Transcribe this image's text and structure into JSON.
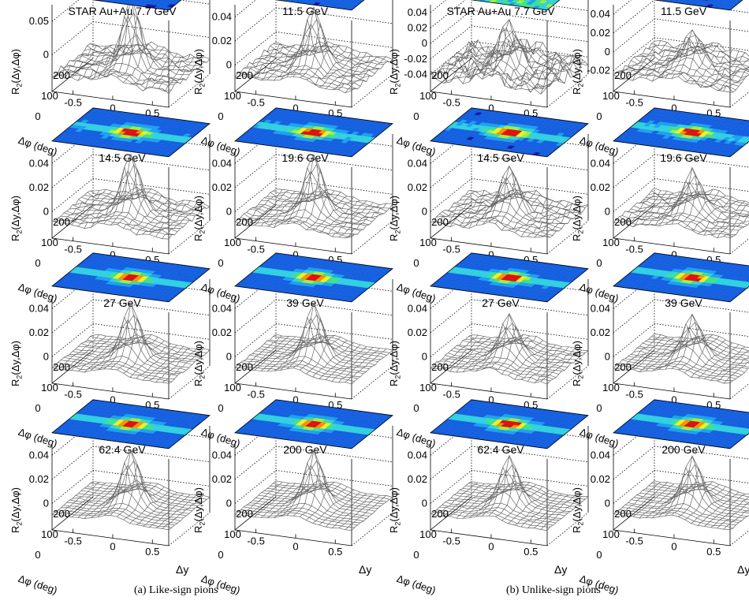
{
  "captions": [
    "(a) Like-sign pions",
    "(b) Unlike-sign pions"
  ],
  "axis_labels": {
    "z": "R2(Δy,Δφ)",
    "x": "Δy",
    "phi": "Δφ (deg)"
  },
  "colors": {
    "mesh": "#666666",
    "colormap": [
      "#1a1aa0",
      "#1560e0",
      "#1ea0f0",
      "#30d0e0",
      "#40e090",
      "#a0f040",
      "#f0f020",
      "#ff9000",
      "#e01010"
    ]
  },
  "chart_data": [
    {
      "type": "surface",
      "group": "Like-sign pions",
      "title": "STAR Au+Au 7.7 GeV",
      "zticks": [
        "0.05",
        "0"
      ],
      "xticks": [
        "-0.5",
        "0",
        "0.5"
      ],
      "phiticks": [
        "200",
        "100",
        "0"
      ],
      "peak": 0.06,
      "noise": 0.45
    },
    {
      "type": "surface",
      "group": "Like-sign pions",
      "title": "11.5 GeV",
      "zticks": [
        "0.04",
        "0.02",
        "0"
      ],
      "xticks": [
        "-0.5",
        "0",
        "0.5"
      ],
      "phiticks": [
        "200",
        "100",
        "0"
      ],
      "peak": 0.05,
      "noise": 0.35
    },
    {
      "type": "surface",
      "group": "Like-sign pions",
      "title": "14.5 GeV",
      "zticks": [
        "0.04",
        "0.02",
        "0"
      ],
      "xticks": [
        "-0.5",
        "0",
        "0.5"
      ],
      "phiticks": [
        "200",
        "100",
        "0"
      ],
      "peak": 0.05,
      "noise": 0.3
    },
    {
      "type": "surface",
      "group": "Like-sign pions",
      "title": "19.6 GeV",
      "zticks": [
        "0.04",
        "0.02",
        "0"
      ],
      "xticks": [
        "-0.5",
        "0",
        "0.5"
      ],
      "phiticks": [
        "200",
        "100",
        "0"
      ],
      "peak": 0.05,
      "noise": 0.25
    },
    {
      "type": "surface",
      "group": "Like-sign pions",
      "title": "27 GeV",
      "zticks": [
        "0.04",
        "0.02",
        "0"
      ],
      "xticks": [
        "-0.5",
        "0",
        "0.5"
      ],
      "phiticks": [
        "200",
        "100",
        "0"
      ],
      "peak": 0.045,
      "noise": 0.15
    },
    {
      "type": "surface",
      "group": "Like-sign pions",
      "title": "39 GeV",
      "zticks": [
        "0.04",
        "0.02",
        "0"
      ],
      "xticks": [
        "-0.5",
        "0",
        "0.5"
      ],
      "phiticks": [
        "200",
        "100",
        "0"
      ],
      "peak": 0.045,
      "noise": 0.12
    },
    {
      "type": "surface",
      "group": "Like-sign pions",
      "title": "62.4 GeV",
      "zticks": [
        "0.04",
        "0.02",
        "0"
      ],
      "xticks": [
        "-0.5",
        "0",
        "0.5"
      ],
      "phiticks": [
        "200",
        "100",
        "0"
      ],
      "peak": 0.045,
      "noise": 0.1
    },
    {
      "type": "surface",
      "group": "Like-sign pions",
      "title": "200 GeV",
      "zticks": [
        "0.04",
        "0.02",
        "0"
      ],
      "xticks": [
        "-0.5",
        "0",
        "0.5"
      ],
      "phiticks": [
        "200",
        "100",
        "0"
      ],
      "peak": 0.045,
      "noise": 0.08
    },
    {
      "type": "surface",
      "group": "Unlike-sign pions",
      "title": "STAR Au+Au 7.7 GeV",
      "zticks": [
        "0.04",
        "0.02",
        "0",
        "-0.02",
        "-0.04"
      ],
      "xticks": [
        "-0.5",
        "0",
        "0.5"
      ],
      "phiticks": [
        "200",
        "100",
        "0"
      ],
      "peak": 0.04,
      "noise": 1.0
    },
    {
      "type": "surface",
      "group": "Unlike-sign pions",
      "title": "11.5 GeV",
      "zticks": [
        "0.04",
        "0.02",
        "0",
        "-0.02"
      ],
      "xticks": [
        "-0.5",
        "0",
        "0.5"
      ],
      "phiticks": [
        "200",
        "100",
        "0"
      ],
      "peak": 0.03,
      "noise": 0.45
    },
    {
      "type": "surface",
      "group": "Unlike-sign pions",
      "title": "14.5 GeV",
      "zticks": [
        "0.04",
        "0.02",
        "0"
      ],
      "xticks": [
        "-0.5",
        "0",
        "0.5"
      ],
      "phiticks": [
        "200",
        "100",
        "0"
      ],
      "peak": 0.04,
      "noise": 0.35
    },
    {
      "type": "surface",
      "group": "Unlike-sign pions",
      "title": "19.6 GeV",
      "zticks": [
        "0.04",
        "0.02",
        "0"
      ],
      "xticks": [
        "-0.5",
        "0",
        "0.5"
      ],
      "phiticks": [
        "200",
        "100",
        "0"
      ],
      "peak": 0.035,
      "noise": 0.3
    },
    {
      "type": "surface",
      "group": "Unlike-sign pions",
      "title": "27 GeV",
      "zticks": [
        "0.04",
        "0.02",
        "0"
      ],
      "xticks": [
        "-0.5",
        "0",
        "0.5"
      ],
      "phiticks": [
        "200",
        "100",
        "0"
      ],
      "peak": 0.035,
      "noise": 0.18
    },
    {
      "type": "surface",
      "group": "Unlike-sign pions",
      "title": "39 GeV",
      "zticks": [
        "0.04",
        "0.02",
        "0"
      ],
      "xticks": [
        "-0.5",
        "0",
        "0.5"
      ],
      "phiticks": [
        "200",
        "100",
        "0"
      ],
      "peak": 0.035,
      "noise": 0.15
    },
    {
      "type": "surface",
      "group": "Unlike-sign pions",
      "title": "62.4 GeV",
      "zticks": [
        "0.04",
        "0.02",
        "0"
      ],
      "xticks": [
        "-0.5",
        "0",
        "0.5"
      ],
      "phiticks": [
        "200",
        "100",
        "0"
      ],
      "peak": 0.04,
      "noise": 0.12
    },
    {
      "type": "surface",
      "group": "Unlike-sign pions",
      "title": "200 GeV",
      "zticks": [
        "0.04",
        "0.02",
        "0"
      ],
      "xticks": [
        "-0.5",
        "0",
        "0.5"
      ],
      "phiticks": [
        "200",
        "100",
        "0"
      ],
      "peak": 0.04,
      "noise": 0.1
    }
  ]
}
